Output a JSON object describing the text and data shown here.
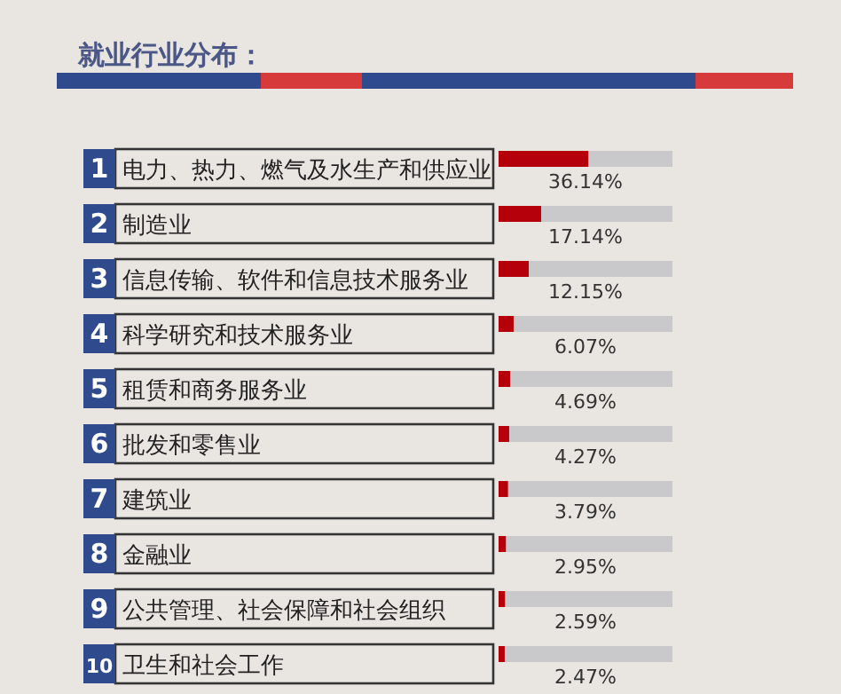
{
  "chart_data": {
    "type": "bar",
    "orientation": "horizontal",
    "title": "就业行业分布：",
    "categories": [
      "电力、热力、燃气及水生产和供应业",
      "制造业",
      "信息传输、软件和信息技术服务业",
      "科学研究和技术服务业",
      "租赁和商务服务业",
      "批发和零售业",
      "建筑业",
      "金融业",
      "公共管理、社会保障和社会组织",
      "卫生和社会工作"
    ],
    "values": [
      36.14,
      17.14,
      12.15,
      6.07,
      4.69,
      4.27,
      3.79,
      2.95,
      2.59,
      2.47
    ],
    "value_labels": [
      "36.14%",
      "17.14%",
      "12.15%",
      "6.07%",
      "4.69%",
      "4.27%",
      "3.79%",
      "2.95%",
      "2.59%",
      "2.47%"
    ],
    "color": "#b5000c",
    "xlim": [
      0,
      70
    ],
    "tick_labels": false,
    "annotations": [
      "1",
      "2",
      "3",
      "4",
      "5",
      "6",
      "7",
      "8",
      "9",
      "10"
    ]
  }
}
